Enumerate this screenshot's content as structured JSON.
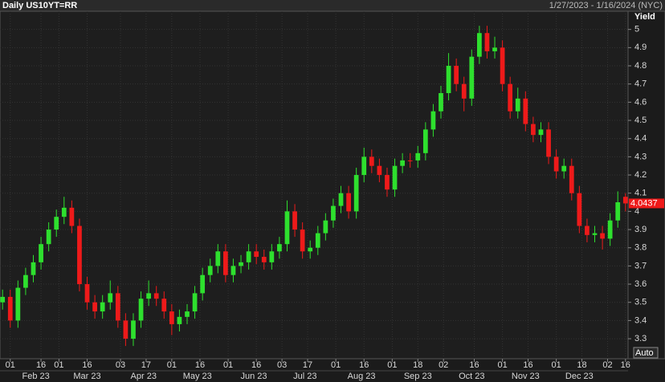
{
  "chart_data": {
    "type": "candlestick",
    "title": "Daily US10YT=RR",
    "date_range": "1/27/2023 - 1/16/2024 (NYC)",
    "y_axis_label": "Yield",
    "scale_mode": "Auto",
    "up_color": "#2ee02e",
    "down_color": "#ee1a1a",
    "grid": true,
    "x": [
      0,
      3,
      6,
      9,
      12,
      15,
      18,
      21,
      24,
      27,
      30,
      33,
      36,
      39,
      42,
      45,
      48,
      51,
      54,
      57,
      60,
      63,
      66,
      69,
      72,
      75,
      78,
      81,
      84,
      87,
      90,
      93,
      96,
      99,
      102,
      105,
      108,
      111,
      114,
      117,
      120,
      123,
      126,
      129,
      132,
      135,
      138,
      141,
      144,
      147,
      150,
      153,
      156,
      159,
      162,
      165,
      168,
      171,
      174,
      177,
      180,
      183,
      186,
      189,
      192,
      195,
      198,
      201,
      204,
      207,
      210,
      213,
      216,
      219,
      222,
      225,
      228,
      231,
      234,
      237,
      240,
      243
    ],
    "open": [
      3.5,
      3.53,
      3.4,
      3.58,
      3.65,
      3.72,
      3.82,
      3.9,
      3.97,
      4.02,
      3.92,
      3.6,
      3.5,
      3.45,
      3.5,
      3.55,
      3.4,
      3.3,
      3.4,
      3.52,
      3.55,
      3.52,
      3.45,
      3.38,
      3.42,
      3.45,
      3.55,
      3.65,
      3.7,
      3.78,
      3.65,
      3.7,
      3.72,
      3.78,
      3.75,
      3.72,
      3.78,
      3.82,
      4.0,
      3.9,
      3.78,
      3.8,
      3.88,
      3.95,
      4.03,
      4.1,
      4.0,
      4.2,
      4.3,
      4.25,
      4.2,
      4.12,
      4.25,
      4.28,
      4.28,
      4.32,
      4.45,
      4.55,
      4.65,
      4.8,
      4.7,
      4.62,
      4.85,
      4.98,
      4.88,
      4.9,
      4.7,
      4.55,
      4.62,
      4.48,
      4.42,
      4.45,
      4.3,
      4.22,
      4.25,
      4.1,
      3.92,
      3.87,
      3.88,
      3.85,
      3.95,
      4.08
    ],
    "high": [
      3.57,
      3.57,
      3.62,
      3.69,
      3.76,
      3.86,
      3.94,
      4.01,
      4.08,
      4.06,
      3.96,
      3.64,
      3.54,
      3.54,
      3.62,
      3.59,
      3.44,
      3.44,
      3.56,
      3.62,
      3.59,
      3.56,
      3.49,
      3.46,
      3.49,
      3.59,
      3.69,
      3.74,
      3.82,
      3.82,
      3.74,
      3.76,
      3.82,
      3.82,
      3.79,
      3.82,
      3.86,
      4.06,
      4.04,
      3.94,
      3.84,
      3.92,
      3.99,
      4.07,
      4.14,
      4.14,
      4.24,
      4.35,
      4.34,
      4.29,
      4.24,
      4.29,
      4.32,
      4.32,
      4.36,
      4.49,
      4.59,
      4.69,
      4.87,
      4.84,
      4.74,
      4.89,
      5.02,
      5.02,
      4.96,
      4.94,
      4.74,
      4.68,
      4.66,
      4.52,
      4.49,
      4.49,
      4.34,
      4.29,
      4.29,
      4.14,
      3.96,
      3.92,
      3.92,
      3.99,
      4.11,
      4.1
    ],
    "low": [
      3.46,
      3.36,
      3.36,
      3.54,
      3.61,
      3.68,
      3.78,
      3.86,
      3.93,
      3.88,
      3.56,
      3.46,
      3.41,
      3.41,
      3.46,
      3.36,
      3.26,
      3.26,
      3.36,
      3.48,
      3.48,
      3.41,
      3.32,
      3.34,
      3.38,
      3.41,
      3.51,
      3.61,
      3.66,
      3.61,
      3.61,
      3.66,
      3.68,
      3.71,
      3.68,
      3.68,
      3.74,
      3.78,
      3.86,
      3.74,
      3.74,
      3.76,
      3.84,
      3.91,
      3.99,
      3.96,
      3.96,
      4.16,
      4.21,
      4.16,
      4.08,
      4.08,
      4.21,
      4.24,
      4.24,
      4.28,
      4.41,
      4.51,
      4.61,
      4.66,
      4.55,
      4.58,
      4.81,
      4.84,
      4.84,
      4.66,
      4.51,
      4.51,
      4.44,
      4.38,
      4.38,
      4.26,
      4.18,
      4.18,
      4.06,
      3.88,
      3.83,
      3.83,
      3.79,
      3.81,
      3.91,
      4.0
    ],
    "close": [
      3.53,
      3.4,
      3.58,
      3.65,
      3.72,
      3.82,
      3.9,
      3.97,
      4.02,
      3.92,
      3.6,
      3.5,
      3.45,
      3.5,
      3.55,
      3.4,
      3.3,
      3.4,
      3.52,
      3.55,
      3.52,
      3.45,
      3.38,
      3.42,
      3.45,
      3.55,
      3.65,
      3.7,
      3.78,
      3.65,
      3.7,
      3.72,
      3.78,
      3.75,
      3.72,
      3.78,
      3.82,
      4.0,
      3.9,
      3.78,
      3.8,
      3.88,
      3.95,
      4.03,
      4.1,
      4.0,
      4.2,
      4.3,
      4.25,
      4.2,
      4.12,
      4.25,
      4.28,
      4.28,
      4.32,
      4.45,
      4.55,
      4.65,
      4.8,
      4.7,
      4.62,
      4.85,
      4.98,
      4.88,
      4.9,
      4.7,
      4.55,
      4.62,
      4.48,
      4.42,
      4.45,
      4.3,
      4.22,
      4.25,
      4.1,
      3.92,
      3.87,
      3.88,
      3.85,
      3.95,
      4.05,
      4.0437
    ],
    "xlim": [
      -1,
      244
    ],
    "ylim": [
      3.19,
      5.1
    ],
    "yticks": [
      3.3,
      3.4,
      3.5,
      3.6,
      3.7,
      3.8,
      3.9,
      4,
      4.1,
      4.2,
      4.3,
      4.4,
      4.5,
      4.6,
      4.7,
      4.8,
      4.9,
      5
    ],
    "xticks": [
      {
        "value": 3,
        "label": "01"
      },
      {
        "value": 15,
        "label": "16"
      },
      {
        "value": 22,
        "label": "01"
      },
      {
        "value": 33,
        "label": "16"
      },
      {
        "value": 46,
        "label": "03"
      },
      {
        "value": 56,
        "label": "17"
      },
      {
        "value": 66,
        "label": "01"
      },
      {
        "value": 77,
        "label": "16"
      },
      {
        "value": 88,
        "label": "01"
      },
      {
        "value": 99,
        "label": "16"
      },
      {
        "value": 109,
        "label": "03"
      },
      {
        "value": 119,
        "label": "17"
      },
      {
        "value": 130,
        "label": "01"
      },
      {
        "value": 141,
        "label": "16"
      },
      {
        "value": 152,
        "label": "01"
      },
      {
        "value": 162,
        "label": "18"
      },
      {
        "value": 172,
        "label": "02"
      },
      {
        "value": 184,
        "label": "16"
      },
      {
        "value": 195,
        "label": "01"
      },
      {
        "value": 205,
        "label": "16"
      },
      {
        "value": 216,
        "label": "01"
      },
      {
        "value": 226,
        "label": "18"
      },
      {
        "value": 236,
        "label": "02"
      },
      {
        "value": 243,
        "label": "16"
      }
    ],
    "month_ticks": [
      {
        "value": 13,
        "label": "Feb 23"
      },
      {
        "value": 33,
        "label": "Mar 23"
      },
      {
        "value": 55,
        "label": "Apr 23"
      },
      {
        "value": 76,
        "label": "May 23"
      },
      {
        "value": 98,
        "label": "Jun 23"
      },
      {
        "value": 118,
        "label": "Jul 23"
      },
      {
        "value": 140,
        "label": "Aug 23"
      },
      {
        "value": 162,
        "label": "Sep 23"
      },
      {
        "value": 183,
        "label": "Oct 23"
      },
      {
        "value": 204,
        "label": "Nov 23"
      },
      {
        "value": 225,
        "label": "Dec 23"
      }
    ]
  }
}
